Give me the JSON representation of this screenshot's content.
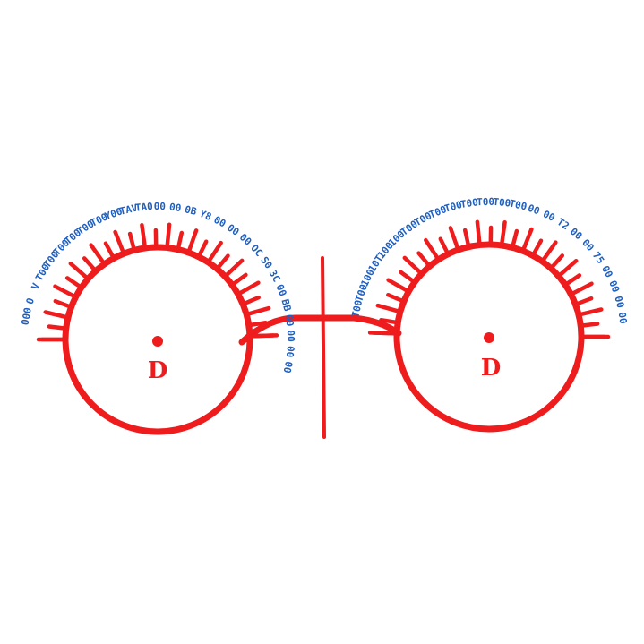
{
  "colors": {
    "dial": "#ee1c1c",
    "scale_text": "#1f5fbf",
    "background": "#ffffff"
  },
  "dials": [
    {
      "name": "left",
      "label": "D",
      "scale_labels": [
        "000",
        "0",
        "V",
        "T00",
        "T00",
        "T00",
        "T00",
        "T00",
        "T00",
        "Y00",
        "TAV",
        "TA0",
        "00",
        "00",
        "0B",
        "Y8",
        "00",
        "00",
        "00",
        "OC",
        "S0",
        "3C",
        "00",
        "BB",
        "00",
        "00",
        "00",
        "00"
      ]
    },
    {
      "name": "right",
      "label": "D",
      "scale_labels": [
        "T00",
        "T00",
        "100",
        "10T",
        "100",
        "100",
        "T00",
        "T00",
        "T00",
        "T00",
        "T00",
        "T00",
        "T00",
        "T00",
        "00",
        "00",
        "T2",
        "00",
        "00",
        "75",
        "00",
        "00",
        "00",
        "00"
      ]
    }
  ],
  "divider": {
    "icon": "vertical-divider-icon"
  }
}
